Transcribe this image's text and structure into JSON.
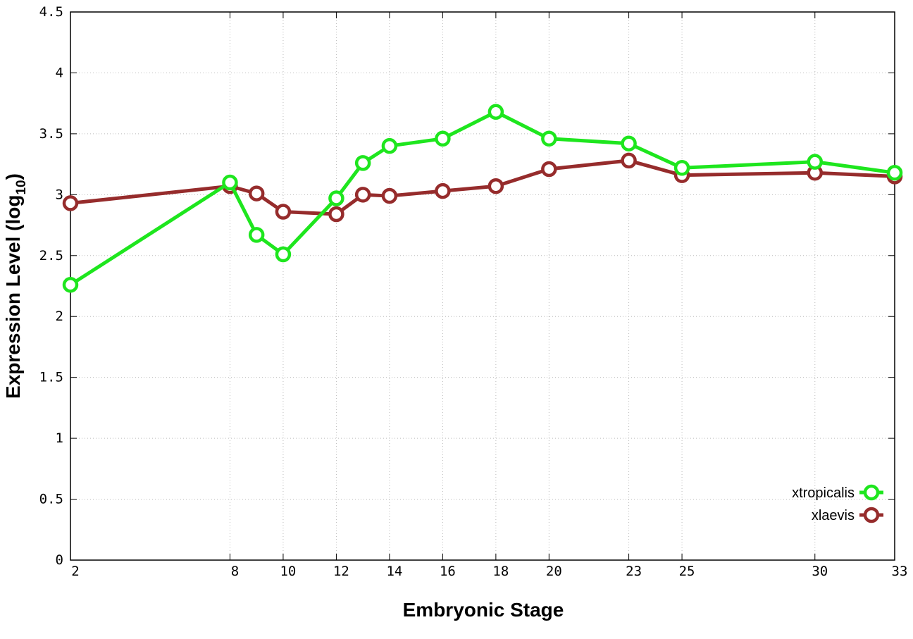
{
  "chart_data": {
    "type": "line",
    "xlabel": "Embryonic Stage",
    "ylabel_main": "Expression Level (log",
    "ylabel_sub": "10",
    "ylabel_close": ")",
    "xlim": [
      2,
      33
    ],
    "ylim": [
      0,
      4.5
    ],
    "x_ticks": [
      2,
      8,
      10,
      12,
      14,
      16,
      18,
      20,
      23,
      25,
      30,
      33
    ],
    "y_ticks": [
      0,
      0.5,
      1,
      1.5,
      2,
      2.5,
      3,
      3.5,
      4,
      4.5
    ],
    "y_tick_labels": [
      "0",
      "0.5",
      "1",
      "1.5",
      "2",
      "2.5",
      "3",
      "3.5",
      "4",
      "4.5"
    ],
    "grid": true,
    "legend_position": "bottom-right",
    "x": [
      2,
      8,
      9,
      10,
      12,
      13,
      14,
      16,
      18,
      20,
      23,
      25,
      30,
      33
    ],
    "series": [
      {
        "name": "xtropicalis",
        "color": "#1ee61e",
        "values": [
          2.26,
          3.1,
          2.67,
          2.51,
          2.97,
          3.26,
          3.4,
          3.46,
          3.68,
          3.46,
          3.42,
          3.22,
          3.27,
          3.18
        ]
      },
      {
        "name": "xlaevis",
        "color": "#962c2c",
        "values": [
          2.93,
          3.07,
          3.01,
          2.86,
          2.84,
          3.0,
          2.99,
          3.03,
          3.07,
          3.21,
          3.28,
          3.16,
          3.18,
          3.15
        ]
      }
    ]
  }
}
